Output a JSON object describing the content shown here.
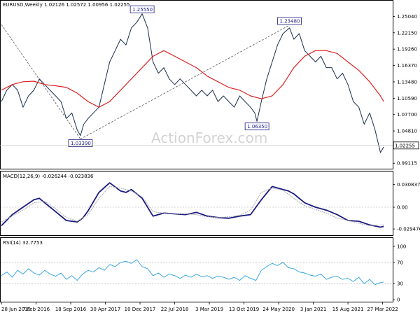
{
  "chart_data": {
    "type": "line",
    "symbol_header": "EURUSD,Weekly  1.02126 1.02572 1.00956 1.02255",
    "watermark": "ActionForex.com",
    "price_panel": {
      "yticks": [
        "1.25040",
        "1.22150",
        "1.19260",
        "1.16370",
        "1.13480",
        "1.10590",
        "1.07700",
        "1.04810",
        "0.99115"
      ],
      "ytick_values": [
        1.2504,
        1.2215,
        1.1926,
        1.1637,
        1.1348,
        1.1059,
        1.077,
        1.0481,
        0.99115
      ],
      "ylim": [
        0.984,
        1.262
      ],
      "current_price": 1.02255,
      "current_price_label": "1.02255",
      "annotations": [
        {
          "label": "1.25550",
          "x": 13.0,
          "value": 1.2555
        },
        {
          "label": "1.03390",
          "x": 7.3,
          "value": 1.0339
        },
        {
          "label": "1.06350",
          "x": 23.6,
          "value": 1.0635
        },
        {
          "label": "1.23480",
          "x": 26.6,
          "value": 1.2348
        }
      ],
      "trendlines": [
        {
          "x1": 0.0,
          "y1": 1.236,
          "x2": 7.3,
          "y2": 1.0339
        },
        {
          "x1": 7.3,
          "y1": 1.0339,
          "x2": 26.6,
          "y2": 1.2348
        }
      ],
      "series": [
        {
          "name": "",
          "color": "#1a2f4f",
          "kind": "price",
          "x": [
            0,
            0.5,
            1,
            1.5,
            2,
            2.5,
            3,
            3.5,
            4,
            4.5,
            5,
            5.5,
            6,
            6.5,
            7,
            7.3,
            7.6,
            8,
            8.5,
            9,
            9.5,
            10,
            10.5,
            11,
            11.5,
            12,
            12.5,
            13,
            13.5,
            14,
            14.5,
            15,
            15.5,
            16,
            16.5,
            17,
            17.5,
            18,
            18.5,
            19,
            19.5,
            20,
            20.5,
            21,
            21.5,
            22,
            22.5,
            23,
            23.4,
            23.6,
            24,
            24.5,
            25,
            25.5,
            26,
            26.6,
            27,
            27.5,
            28,
            28.5,
            29,
            29.5,
            30,
            30.5,
            31,
            31.5,
            32,
            32.5,
            33,
            33.5,
            34,
            34.5,
            35,
            35.3
          ],
          "values": [
            1.1,
            1.12,
            1.13,
            1.12,
            1.09,
            1.11,
            1.12,
            1.14,
            1.13,
            1.12,
            1.11,
            1.1,
            1.07,
            1.08,
            1.05,
            1.04,
            1.06,
            1.07,
            1.08,
            1.09,
            1.13,
            1.17,
            1.19,
            1.21,
            1.2,
            1.23,
            1.24,
            1.255,
            1.23,
            1.17,
            1.15,
            1.16,
            1.14,
            1.13,
            1.14,
            1.13,
            1.12,
            1.11,
            1.12,
            1.11,
            1.12,
            1.1,
            1.11,
            1.1,
            1.09,
            1.11,
            1.1,
            1.09,
            1.08,
            1.065,
            1.1,
            1.14,
            1.17,
            1.2,
            1.22,
            1.23,
            1.21,
            1.22,
            1.19,
            1.18,
            1.17,
            1.18,
            1.16,
            1.16,
            1.14,
            1.15,
            1.13,
            1.1,
            1.09,
            1.06,
            1.08,
            1.05,
            1.01,
            1.02
          ]
        },
        {
          "name": "",
          "color": "#dd2222",
          "kind": "ma",
          "x": [
            0,
            1,
            2,
            3,
            4,
            5,
            6,
            7,
            8,
            9,
            10,
            11,
            12,
            13,
            14,
            15,
            16,
            17,
            18,
            19,
            20,
            21,
            22,
            23,
            24,
            25,
            26,
            27,
            28,
            29,
            30,
            31,
            32,
            33,
            34,
            35,
            35.3
          ],
          "values": [
            1.12,
            1.13,
            1.135,
            1.136,
            1.13,
            1.128,
            1.125,
            1.115,
            1.1,
            1.09,
            1.1,
            1.12,
            1.14,
            1.16,
            1.18,
            1.19,
            1.18,
            1.17,
            1.16,
            1.145,
            1.135,
            1.125,
            1.12,
            1.11,
            1.105,
            1.11,
            1.13,
            1.16,
            1.18,
            1.19,
            1.19,
            1.185,
            1.17,
            1.155,
            1.135,
            1.11,
            1.1
          ]
        }
      ]
    },
    "macd_panel": {
      "label": "MACD(12,26,9) -0.026244 -0.023836",
      "yticks": [
        "0.030837",
        "0.00",
        "-0.029476"
      ],
      "ytick_values": [
        0.030837,
        0.0,
        -0.029476
      ],
      "ylim": [
        -0.036,
        0.036
      ],
      "series": [
        {
          "name": "",
          "color": "#1a1a80",
          "kind": "macd",
          "x": [
            0,
            1,
            2,
            3,
            3.5,
            4,
            5,
            6,
            7,
            7.5,
            8,
            9,
            10,
            11,
            11.5,
            12,
            13,
            14,
            15,
            16,
            17,
            18,
            19,
            20,
            21,
            22,
            23,
            24,
            25,
            26,
            26.5,
            27,
            28,
            29,
            30,
            31,
            32,
            33,
            34,
            35,
            35.3
          ],
          "values": [
            -0.025,
            -0.01,
            0.0,
            0.01,
            0.012,
            0.006,
            -0.006,
            -0.018,
            -0.02,
            -0.015,
            -0.005,
            0.02,
            0.033,
            0.022,
            0.02,
            0.024,
            0.012,
            -0.012,
            -0.008,
            -0.009,
            -0.01,
            -0.007,
            -0.012,
            -0.014,
            -0.015,
            -0.012,
            -0.01,
            0.01,
            0.028,
            0.024,
            0.022,
            0.018,
            0.006,
            0.0,
            -0.004,
            -0.01,
            -0.018,
            -0.019,
            -0.024,
            -0.027,
            -0.026
          ]
        },
        {
          "name": "",
          "color": "#aaaaaa",
          "kind": "signal",
          "x": [
            0,
            1,
            2,
            3,
            4,
            5,
            6,
            7,
            8,
            9,
            10,
            11,
            12,
            13,
            14,
            15,
            16,
            17,
            18,
            19,
            20,
            21,
            22,
            23,
            24,
            25,
            26,
            27,
            28,
            29,
            30,
            31,
            32,
            33,
            34,
            35,
            35.3
          ],
          "values": [
            -0.02,
            -0.012,
            -0.004,
            0.006,
            0.008,
            -0.002,
            -0.014,
            -0.019,
            -0.01,
            0.012,
            0.028,
            0.026,
            0.022,
            0.014,
            -0.006,
            -0.008,
            -0.009,
            -0.009,
            -0.01,
            -0.013,
            -0.014,
            -0.013,
            -0.011,
            -0.004,
            0.02,
            0.026,
            0.023,
            0.012,
            0.002,
            -0.003,
            -0.008,
            -0.015,
            -0.018,
            -0.022,
            -0.025,
            -0.024,
            -0.024
          ]
        }
      ]
    },
    "rsi_panel": {
      "label": "RSI(14) 32.7753",
      "yticks": [
        "100",
        "70",
        "30",
        "0"
      ],
      "ytick_values": [
        100,
        70,
        30,
        0
      ],
      "ylim": [
        0,
        100
      ],
      "series": [
        {
          "name": "",
          "color": "#2aa0e0",
          "kind": "rsi",
          "x": [
            0,
            0.5,
            1,
            1.5,
            2,
            2.5,
            3,
            3.5,
            4,
            4.5,
            5,
            5.5,
            6,
            6.5,
            7,
            7.5,
            8,
            8.5,
            9,
            9.5,
            10,
            10.5,
            11,
            11.5,
            12,
            12.5,
            13,
            13.5,
            14,
            14.5,
            15,
            15.5,
            16,
            16.5,
            17,
            17.5,
            18,
            18.5,
            19,
            19.5,
            20,
            20.5,
            21,
            21.5,
            22,
            22.5,
            23,
            23.5,
            24,
            24.5,
            25,
            25.5,
            26,
            26.5,
            27,
            27.5,
            28,
            28.5,
            29,
            29.5,
            30,
            30.5,
            31,
            31.5,
            32,
            32.5,
            33,
            33.5,
            34,
            34.5,
            35,
            35.3
          ],
          "values": [
            45,
            52,
            42,
            55,
            48,
            58,
            50,
            46,
            55,
            48,
            44,
            50,
            38,
            45,
            36,
            48,
            55,
            52,
            60,
            55,
            66,
            62,
            70,
            72,
            68,
            75,
            62,
            58,
            45,
            50,
            42,
            48,
            45,
            40,
            46,
            42,
            48,
            43,
            45,
            40,
            44,
            42,
            38,
            42,
            36,
            45,
            40,
            36,
            55,
            62,
            68,
            64,
            70,
            60,
            58,
            52,
            50,
            46,
            44,
            48,
            38,
            42,
            44,
            38,
            40,
            34,
            42,
            30,
            38,
            28,
            32,
            33
          ]
        }
      ]
    },
    "xaxis": {
      "ticks": [
        "28 Jun 2015",
        "7 Feb 2016",
        "18 Sep 2016",
        "30 Apr 2017",
        "10 Dec 2017",
        "22 Jul 2018",
        "3 Mar 2019",
        "13 Oct 2019",
        "24 May 2020",
        "3 Jan 2021",
        "15 Aug 2021",
        "27 Mar 2022"
      ],
      "tick_positions": [
        0,
        3.2,
        6.4,
        9.6,
        12.8,
        16.0,
        19.2,
        22.4,
        25.6,
        28.8,
        32.0,
        35.2
      ],
      "xlim": [
        0,
        36
      ]
    }
  }
}
